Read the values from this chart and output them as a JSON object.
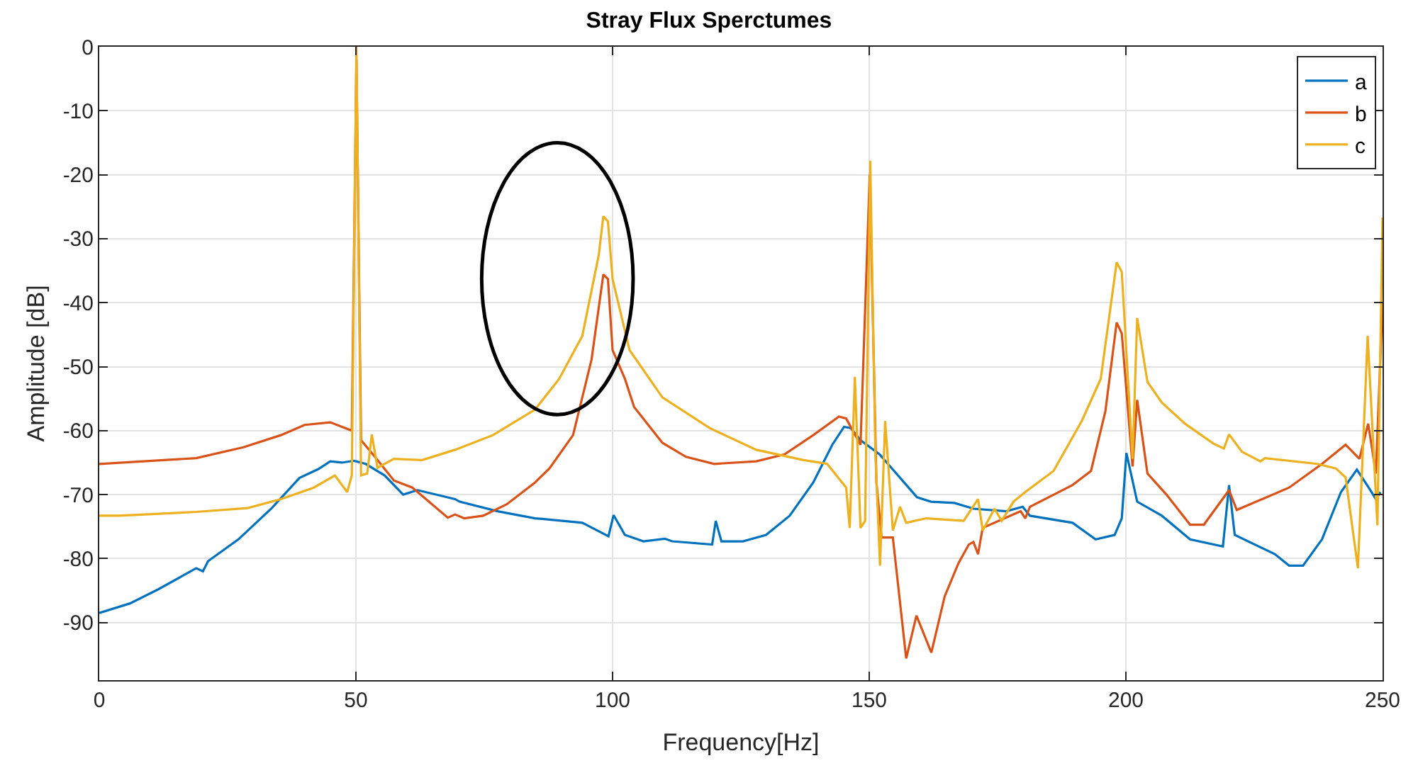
{
  "chart_data": {
    "type": "line",
    "title": "Stray Flux Sperctumes",
    "xlabel": "Frequency[Hz]",
    "ylabel": "Amplitude [dB]",
    "xlim": [
      0,
      250
    ],
    "xticks": [
      0,
      50,
      100,
      150,
      200,
      250
    ],
    "ylim": [
      -99,
      0
    ],
    "yticks": [
      -90,
      -80,
      -70,
      -60,
      -50,
      -40,
      -30,
      -20,
      -10,
      0
    ],
    "grid": true,
    "legend": "top right",
    "series": [
      {
        "name": "a",
        "color": "#0072bd",
        "x": [
          0,
          6,
          11.5,
          18.9,
          20.2,
          21.2,
          27.1,
          33.5,
          39,
          42.7,
          45,
          47.3,
          49.6,
          51.9,
          55.6,
          59.2,
          62,
          69.3,
          70.2,
          77.6,
          84.9,
          87.7,
          94.1,
          99.2,
          100.2,
          102.4,
          106,
          110.2,
          111.6,
          119.4,
          120.1,
          121.2,
          125.4,
          129.9,
          134.5,
          139.1,
          142.8,
          145.1,
          146.4,
          148.3,
          152,
          155.6,
          159.3,
          162,
          166.6,
          170.3,
          176.7,
          179.9,
          181.3,
          189.6,
          194.1,
          197.8,
          199.2,
          200.1,
          202.2,
          207,
          212.5,
          218.9,
          220.1,
          221.2,
          229,
          231.8,
          234.5,
          238.2,
          241.9,
          245,
          247.3,
          248.7,
          249.6
        ],
        "values": [
          -88.5,
          -87,
          -84.8,
          -81.5,
          -82,
          -80.4,
          -77,
          -72.2,
          -67.4,
          -66,
          -64.8,
          -65,
          -64.7,
          -65.2,
          -67,
          -70,
          -69.3,
          -70.7,
          -71.1,
          -72.6,
          -73.7,
          -73.9,
          -74.4,
          -76.5,
          -73.2,
          -76.3,
          -77.3,
          -76.9,
          -77.3,
          -77.8,
          -74.1,
          -77.3,
          -77.3,
          -76.3,
          -73.3,
          -68.1,
          -62.2,
          -59.4,
          -59.6,
          -61.5,
          -63.7,
          -67,
          -70.4,
          -71.1,
          -71.3,
          -72.2,
          -72.6,
          -71.9,
          -73.3,
          -74.4,
          -77,
          -76.3,
          -73.7,
          -63.5,
          -71.1,
          -73.3,
          -77,
          -78.1,
          -68.5,
          -76.3,
          -79.3,
          -81.1,
          -81.1,
          -77,
          -69.6,
          -66.1,
          -68.9,
          -70.7,
          -69.6
        ]
      },
      {
        "name": "b",
        "color": "#d95319",
        "x": [
          0,
          18.9,
          28.1,
          35.4,
          40,
          45,
          49.2,
          50.1,
          51,
          53.7,
          57.4,
          61,
          67.9,
          69.3,
          71.1,
          74.8,
          79.4,
          84.9,
          87.7,
          92.3,
          95.9,
          98.2,
          99.1,
          100,
          102.4,
          104.2,
          109.7,
          114.3,
          119.8,
          128,
          133.5,
          139.1,
          144.1,
          145.5,
          148.3,
          150.1,
          151.4,
          152.4,
          154.6,
          157.2,
          159.2,
          162.1,
          164.7,
          167.4,
          169.4,
          170.3,
          171.2,
          172.1,
          179.5,
          180.4,
          181.3,
          189.6,
          193.2,
          196,
          198.2,
          199.2,
          201.3,
          202.2,
          204.2,
          207.9,
          212.5,
          215.2,
          220.1,
          221.6,
          231.8,
          238.2,
          242.8,
          245.5,
          247.2,
          248.7,
          250
        ],
        "values": [
          -65.2,
          -64.3,
          -62.6,
          -60.7,
          -59.1,
          -58.7,
          -60,
          -2,
          -61.5,
          -64.1,
          -67.8,
          -68.9,
          -73.6,
          -73.1,
          -73.7,
          -73.3,
          -71.5,
          -68.1,
          -65.9,
          -60.7,
          -48.9,
          -35.6,
          -36.3,
          -47.4,
          -51.9,
          -56.3,
          -61.9,
          -64.1,
          -65.2,
          -64.8,
          -63.7,
          -60.7,
          -57.8,
          -58.1,
          -62.2,
          -20,
          -68.1,
          -76.7,
          -76.7,
          -95.6,
          -88.9,
          -94.7,
          -85.9,
          -80.7,
          -77.8,
          -77.4,
          -79.3,
          -75.2,
          -72.6,
          -73.7,
          -71.9,
          -68.5,
          -66.3,
          -57,
          -43.1,
          -44.8,
          -65.6,
          -55.2,
          -66.7,
          -70,
          -74.7,
          -74.7,
          -69.3,
          -72.4,
          -68.9,
          -65.2,
          -62.2,
          -64.4,
          -58.9,
          -66.7,
          -40
        ]
      },
      {
        "name": "c",
        "color": "#edb120",
        "x": [
          0,
          3.9,
          18.9,
          28.9,
          35.4,
          41.8,
          45.9,
          48.3,
          49.2,
          50.1,
          51,
          52.2,
          53.1,
          54.2,
          57.4,
          62.9,
          69.3,
          76.7,
          84.9,
          89.6,
          94.1,
          97.3,
          98.2,
          99.1,
          100,
          103.3,
          109.7,
          118.9,
          128,
          137.2,
          141.8,
          145.5,
          146.2,
          147.2,
          148.3,
          149.2,
          150.2,
          151.2,
          152.1,
          153.1,
          154.6,
          156,
          157.2,
          161.1,
          164.7,
          168.4,
          171.2,
          172.1,
          174.4,
          175.8,
          178.1,
          180.4,
          185.9,
          191.4,
          195.1,
          198.2,
          199.2,
          201.3,
          202.2,
          204.2,
          207,
          211.5,
          217,
          219.1,
          220.1,
          222.6,
          226.2,
          227.1,
          237.3,
          240.9,
          242.8,
          245.2,
          247.1,
          249,
          250
        ],
        "values": [
          -73.3,
          -73.3,
          -72.7,
          -72.1,
          -70.7,
          -68.9,
          -67,
          -69.6,
          -67,
          0,
          -67,
          -66.7,
          -60.6,
          -65.8,
          -64.4,
          -64.6,
          -63,
          -60.7,
          -56.7,
          -51.9,
          -45.2,
          -32.6,
          -26.5,
          -27.3,
          -36.3,
          -47.4,
          -54.8,
          -59.6,
          -63,
          -64.6,
          -65.2,
          -68.9,
          -75.2,
          -51.6,
          -75.2,
          -74.1,
          -17.8,
          -63.7,
          -81.1,
          -58.5,
          -75.6,
          -71.9,
          -74.4,
          -73.7,
          -73.9,
          -74.1,
          -70.7,
          -75.6,
          -72.2,
          -74.1,
          -71.1,
          -69.6,
          -66.3,
          -58.5,
          -51.9,
          -33.7,
          -35.2,
          -64.4,
          -42.4,
          -52.4,
          -55.6,
          -58.9,
          -62,
          -62.8,
          -60.6,
          -63.3,
          -64.8,
          -64.3,
          -65.2,
          -65.9,
          -67.3,
          -81.5,
          -45.2,
          -74.8,
          -26.7
        ]
      }
    ]
  }
}
